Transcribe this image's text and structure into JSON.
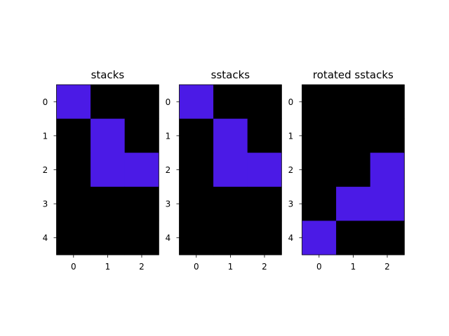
{
  "chart_data": [
    {
      "type": "heatmap",
      "title": "stacks",
      "x_ticks": [
        "0",
        "1",
        "2"
      ],
      "y_ticks": [
        "0",
        "1",
        "2",
        "3",
        "4"
      ],
      "grid": false,
      "values": [
        [
          1,
          0,
          0
        ],
        [
          0,
          1,
          0
        ],
        [
          0,
          1,
          1
        ],
        [
          0,
          0,
          0
        ],
        [
          0,
          0,
          0
        ]
      ]
    },
    {
      "type": "heatmap",
      "title": "sstacks",
      "x_ticks": [
        "0",
        "1",
        "2"
      ],
      "y_ticks": [
        "0",
        "1",
        "2",
        "3",
        "4"
      ],
      "grid": false,
      "values": [
        [
          1,
          0,
          0
        ],
        [
          0,
          1,
          0
        ],
        [
          0,
          1,
          1
        ],
        [
          0,
          0,
          0
        ],
        [
          0,
          0,
          0
        ]
      ]
    },
    {
      "type": "heatmap",
      "title": "rotated sstacks",
      "x_ticks": [
        "0",
        "1",
        "2"
      ],
      "y_ticks": [
        "0",
        "1",
        "2",
        "3",
        "4"
      ],
      "grid": false,
      "values": [
        [
          0,
          0,
          0
        ],
        [
          0,
          0,
          0
        ],
        [
          0,
          0,
          1
        ],
        [
          0,
          1,
          1
        ],
        [
          1,
          0,
          0
        ]
      ]
    }
  ],
  "colors": {
    "filled": "#4b1ae6",
    "empty": "#000000"
  }
}
